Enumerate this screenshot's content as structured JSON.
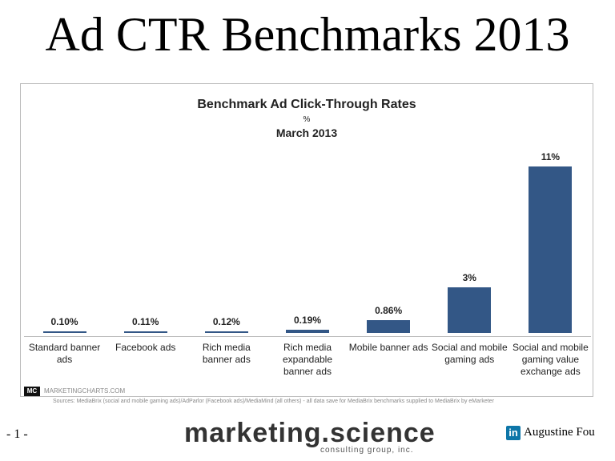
{
  "slide_title": "Ad CTR Benchmarks 2013",
  "chart_data": {
    "type": "bar",
    "title": "Benchmark Ad Click-Through Rates",
    "subtitle": "%",
    "date": "March 2013",
    "categories": [
      "Standard banner ads",
      "Facebook ads",
      "Rich media banner ads",
      "Rich media expandable banner ads",
      "Mobile banner ads",
      "Social and mobile gaming ads",
      "Social and mobile gaming value exchange ads"
    ],
    "values": [
      0.1,
      0.11,
      0.12,
      0.19,
      0.86,
      3,
      11
    ],
    "value_labels": [
      "0.10%",
      "0.11%",
      "0.12%",
      "0.19%",
      "0.86%",
      "3%",
      "11%"
    ],
    "color": "#335786",
    "brand_logo": "MC",
    "brand": "MARKETINGCHARTS.COM",
    "source": "Sources: MediaBrix (social and mobile gaming ads)/AdParlor (Facebook ads)/MediaMind (all others) - all data save for MediaBrix benchmarks supplied to MediaBrix by eMarketer"
  },
  "footer": {
    "page": "- 1 -",
    "logo": "marketing.science",
    "logo_sub": "consulting group, inc.",
    "linkedin": "in",
    "author": "Augustine Fou"
  }
}
